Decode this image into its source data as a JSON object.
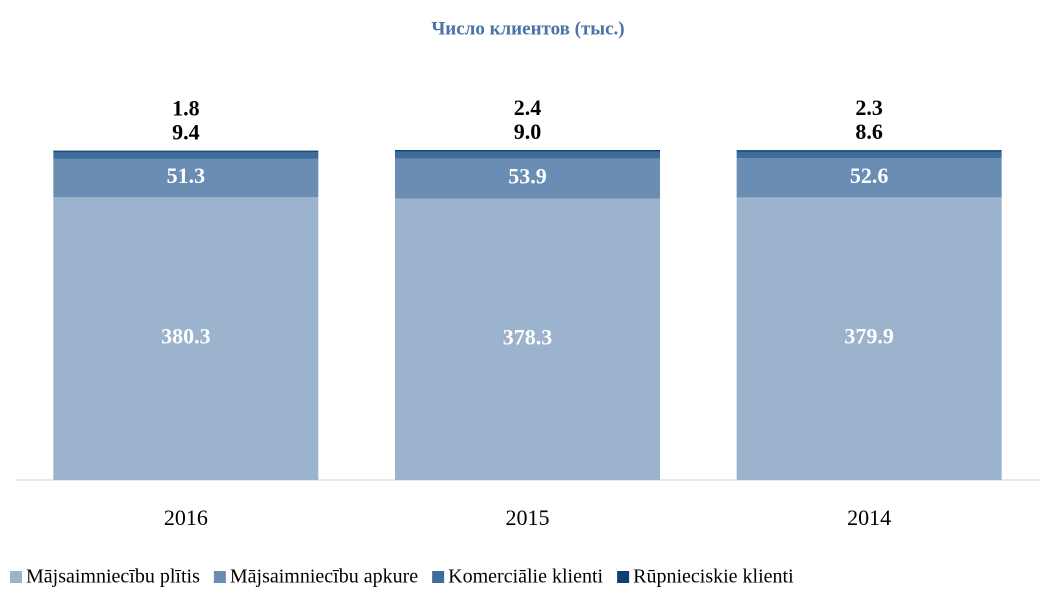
{
  "chart_data": {
    "type": "stacked_bar",
    "title": "Число клиентов (тыс.)",
    "categories": [
      "2016",
      "2015",
      "2014"
    ],
    "series": [
      {
        "name": "Mājsaimniecību plītis",
        "color": "#9bb3cc",
        "values": [
          380.3,
          378.3,
          379.9
        ]
      },
      {
        "name": "Mājsaimniecību apkure",
        "color": "#6a8db3",
        "values": [
          51.3,
          53.9,
          52.6
        ]
      },
      {
        "name": "Komerciālie klienti",
        "color": "#3f6d9b",
        "values": [
          9.4,
          9.0,
          8.6
        ]
      },
      {
        "name": "Rūpnieciskie klienti",
        "color": "#0f3f76",
        "values": [
          1.8,
          2.4,
          2.3
        ]
      }
    ],
    "value_labels": [
      [
        "380.3",
        "378.3",
        "379.9"
      ],
      [
        "51.3",
        "53.9",
        "52.6"
      ],
      [
        "9.4",
        "9.0",
        "8.6"
      ],
      [
        "1.8",
        "2.4",
        "2.3"
      ]
    ],
    "legend": "bottom"
  }
}
